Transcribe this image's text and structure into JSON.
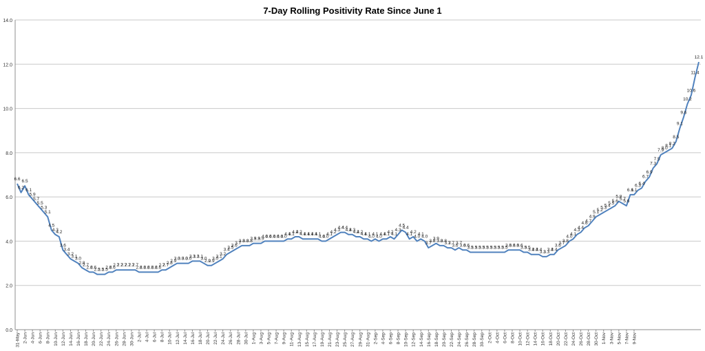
{
  "chart_data": {
    "type": "line",
    "title": "7-Day Rolling Positivity Rate Since June 1",
    "xlabel": "",
    "ylabel": "",
    "ylim": [
      0,
      14
    ],
    "yticks": [
      "0.0",
      "2.0",
      "4.0",
      "6.0",
      "8.0",
      "10.0",
      "12.0",
      "14.0"
    ],
    "grid": true,
    "legend": "none",
    "line_color": "#4F81BD",
    "x_tick_labels": [
      "31-May",
      "2-Jun",
      "4-Jun",
      "6-Jun",
      "8-Jun",
      "10-Jun",
      "12-Jun",
      "14-Jun",
      "16-Jun",
      "18-Jun",
      "20-Jun",
      "22-Jun",
      "24-Jun",
      "26-Jun",
      "28-Jun",
      "30-Jun",
      "2-Jul",
      "4-Jul",
      "6-Jul",
      "8-Jul",
      "10-Jul",
      "12-Jul",
      "14-Jul",
      "16-Jul",
      "18-Jul",
      "20-Jul",
      "22-Jul",
      "24-Jul",
      "26-Jul",
      "28-Jul",
      "30-Jul",
      "1-Aug",
      "3-Aug",
      "5-Aug",
      "7-Aug",
      "9-Aug",
      "11-Aug",
      "13-Aug",
      "15-Aug",
      "17-Aug",
      "19-Aug",
      "21-Aug",
      "23-Aug",
      "25-Aug",
      "27-Aug",
      "29-Aug",
      "31-Aug",
      "2-Sep",
      "4-Sep",
      "6-Sep",
      "8-Sep",
      "10-Sep",
      "12-Sep",
      "14-Sep",
      "16-Sep",
      "18-Sep",
      "20-Sep",
      "22-Sep",
      "24-Sep",
      "26-Sep",
      "28-Sep",
      "30-Sep",
      "2-Oct",
      "4-Oct",
      "6-Oct",
      "8-Oct",
      "10-Oct",
      "12-Oct",
      "14-Oct",
      "16-Oct",
      "18-Oct",
      "20-Oct",
      "22-Oct",
      "24-Oct",
      "26-Oct",
      "28-Oct",
      "30-Oct",
      "1-Nov",
      "3-Nov",
      "5-Nov",
      "7-Nov",
      "9-Nov"
    ],
    "values": [
      6.6,
      6.2,
      6.5,
      6.1,
      5.9,
      5.7,
      5.5,
      5.3,
      5.1,
      4.5,
      4.3,
      4.2,
      3.6,
      3.4,
      3.2,
      3.1,
      3.0,
      2.8,
      2.7,
      2.6,
      2.6,
      2.5,
      2.5,
      2.5,
      2.6,
      2.6,
      2.7,
      2.7,
      2.7,
      2.7,
      2.7,
      2.7,
      2.6,
      2.6,
      2.6,
      2.6,
      2.6,
      2.6,
      2.7,
      2.7,
      2.8,
      2.9,
      3.0,
      3.0,
      3.0,
      3.0,
      3.1,
      3.1,
      3.1,
      3.0,
      2.9,
      2.9,
      3.0,
      3.1,
      3.2,
      3.4,
      3.5,
      3.6,
      3.7,
      3.8,
      3.8,
      3.8,
      3.9,
      3.9,
      3.9,
      4.0,
      4.0,
      4.0,
      4.0,
      4.0,
      4.0,
      4.1,
      4.1,
      4.2,
      4.2,
      4.1,
      4.1,
      4.1,
      4.1,
      4.1,
      4.0,
      4.0,
      4.1,
      4.2,
      4.3,
      4.4,
      4.4,
      4.3,
      4.3,
      4.2,
      4.2,
      4.1,
      4.1,
      4.0,
      4.1,
      4.0,
      4.1,
      4.1,
      4.2,
      4.1,
      4.3,
      4.5,
      4.4,
      4.1,
      4.2,
      4.0,
      4.1,
      4.0,
      3.7,
      3.8,
      3.9,
      3.8,
      3.8,
      3.7,
      3.7,
      3.6,
      3.7,
      3.6,
      3.6,
      3.5,
      3.5,
      3.5,
      3.5,
      3.5,
      3.5,
      3.5,
      3.5,
      3.5,
      3.5,
      3.6,
      3.6,
      3.6,
      3.6,
      3.5,
      3.5,
      3.4,
      3.4,
      3.4,
      3.3,
      3.3,
      3.4,
      3.4,
      3.6,
      3.7,
      3.8,
      4.0,
      4.1,
      4.3,
      4.4,
      4.6,
      4.7,
      4.9,
      5.1,
      5.2,
      5.3,
      5.4,
      5.5,
      5.6,
      5.8,
      5.7,
      5.6,
      6.1,
      6.1,
      6.3,
      6.4,
      6.7,
      6.9,
      7.3,
      7.5,
      7.9,
      8.0,
      8.1,
      8.2,
      8.5,
      9.1,
      9.6,
      10.2,
      10.6,
      11.4,
      12.1
    ],
    "point_labels": [
      "6.6",
      "6.2",
      "6.5",
      "6.1",
      "5.9",
      "5.7",
      "5.5",
      "5.3",
      "5.1",
      "4.5",
      "4.3",
      "4.2",
      "3.6",
      "3.4",
      "3.2",
      "3.1",
      "3.0",
      "2.8",
      "2.7",
      "2.6",
      "2.6",
      "2.5",
      "2.5",
      "2.5",
      "2.6",
      "2.6",
      "2.7",
      "2.7",
      "2.7",
      "2.7",
      "2.7",
      "2.7",
      "2.6",
      "2.6",
      "2.6",
      "2.6",
      "2.6",
      "2.6",
      "2.7",
      "2.7",
      "2.8",
      "2.9",
      "3.0",
      "3.0",
      "3.0",
      "3.0",
      "3.1",
      "3.1",
      "3.1",
      "3.0",
      "2.9",
      "2.9",
      "3.0",
      "3.1",
      "3.2",
      "3.4",
      "3.5",
      "3.6",
      "3.7",
      "3.8",
      "3.8",
      "3.8",
      "3.9",
      "3.9",
      "3.9",
      "4.0",
      "4.0",
      "4.0",
      "4.0",
      "4.0",
      "4.0",
      "4.1",
      "4.1",
      "4.2",
      "4.2",
      "4.1",
      "4.1",
      "4.1",
      "4.1",
      "4.1",
      "4.0",
      "4.0",
      "4.1",
      "4.2",
      "4.3",
      "4.4",
      "4.4",
      "4.3",
      "4.3",
      "4.2",
      "4.2",
      "4.1",
      "4.1",
      "4.0",
      "4.1",
      "4.0",
      "4.1",
      "4.1",
      "4.2",
      "4.1",
      "4.3",
      "4.5",
      "4.4",
      "4.1",
      "4.2",
      "4.0",
      "4.1",
      "4.0",
      "3.7",
      "3.8",
      "3.9",
      "3.8",
      "3.8",
      "3.7",
      "3.7",
      "3.6",
      "3.7",
      "3.6",
      "3.6",
      "3.5",
      "3.5",
      "3.5",
      "3.5",
      "3.5",
      "3.5",
      "3.5",
      "3.5",
      "3.5",
      "3.5",
      "3.6",
      "3.6",
      "3.6",
      "3.6",
      "3.5",
      "3.5",
      "3.4",
      "3.4",
      "3.4",
      "3.3",
      "3.3",
      "3.4",
      "3.4",
      "3.6",
      "3.7",
      "3.8",
      "4.0",
      "4.1",
      "4.3",
      "4.4",
      "4.6",
      "4.7",
      "4.9",
      "5.1",
      "5.2",
      "5.3",
      "5.4",
      "5.5",
      "5.6",
      "5.8",
      "5.7",
      "5.6",
      "6.1",
      "6.1",
      "6.3",
      "6.4",
      "6.7",
      "6.9",
      "7.3",
      "7.5",
      "7.9",
      "8.0",
      "8.1",
      "8.2",
      "8.5",
      "9.1",
      "9.6",
      "10.2",
      "10.6",
      "11.4",
      "12.1"
    ]
  }
}
